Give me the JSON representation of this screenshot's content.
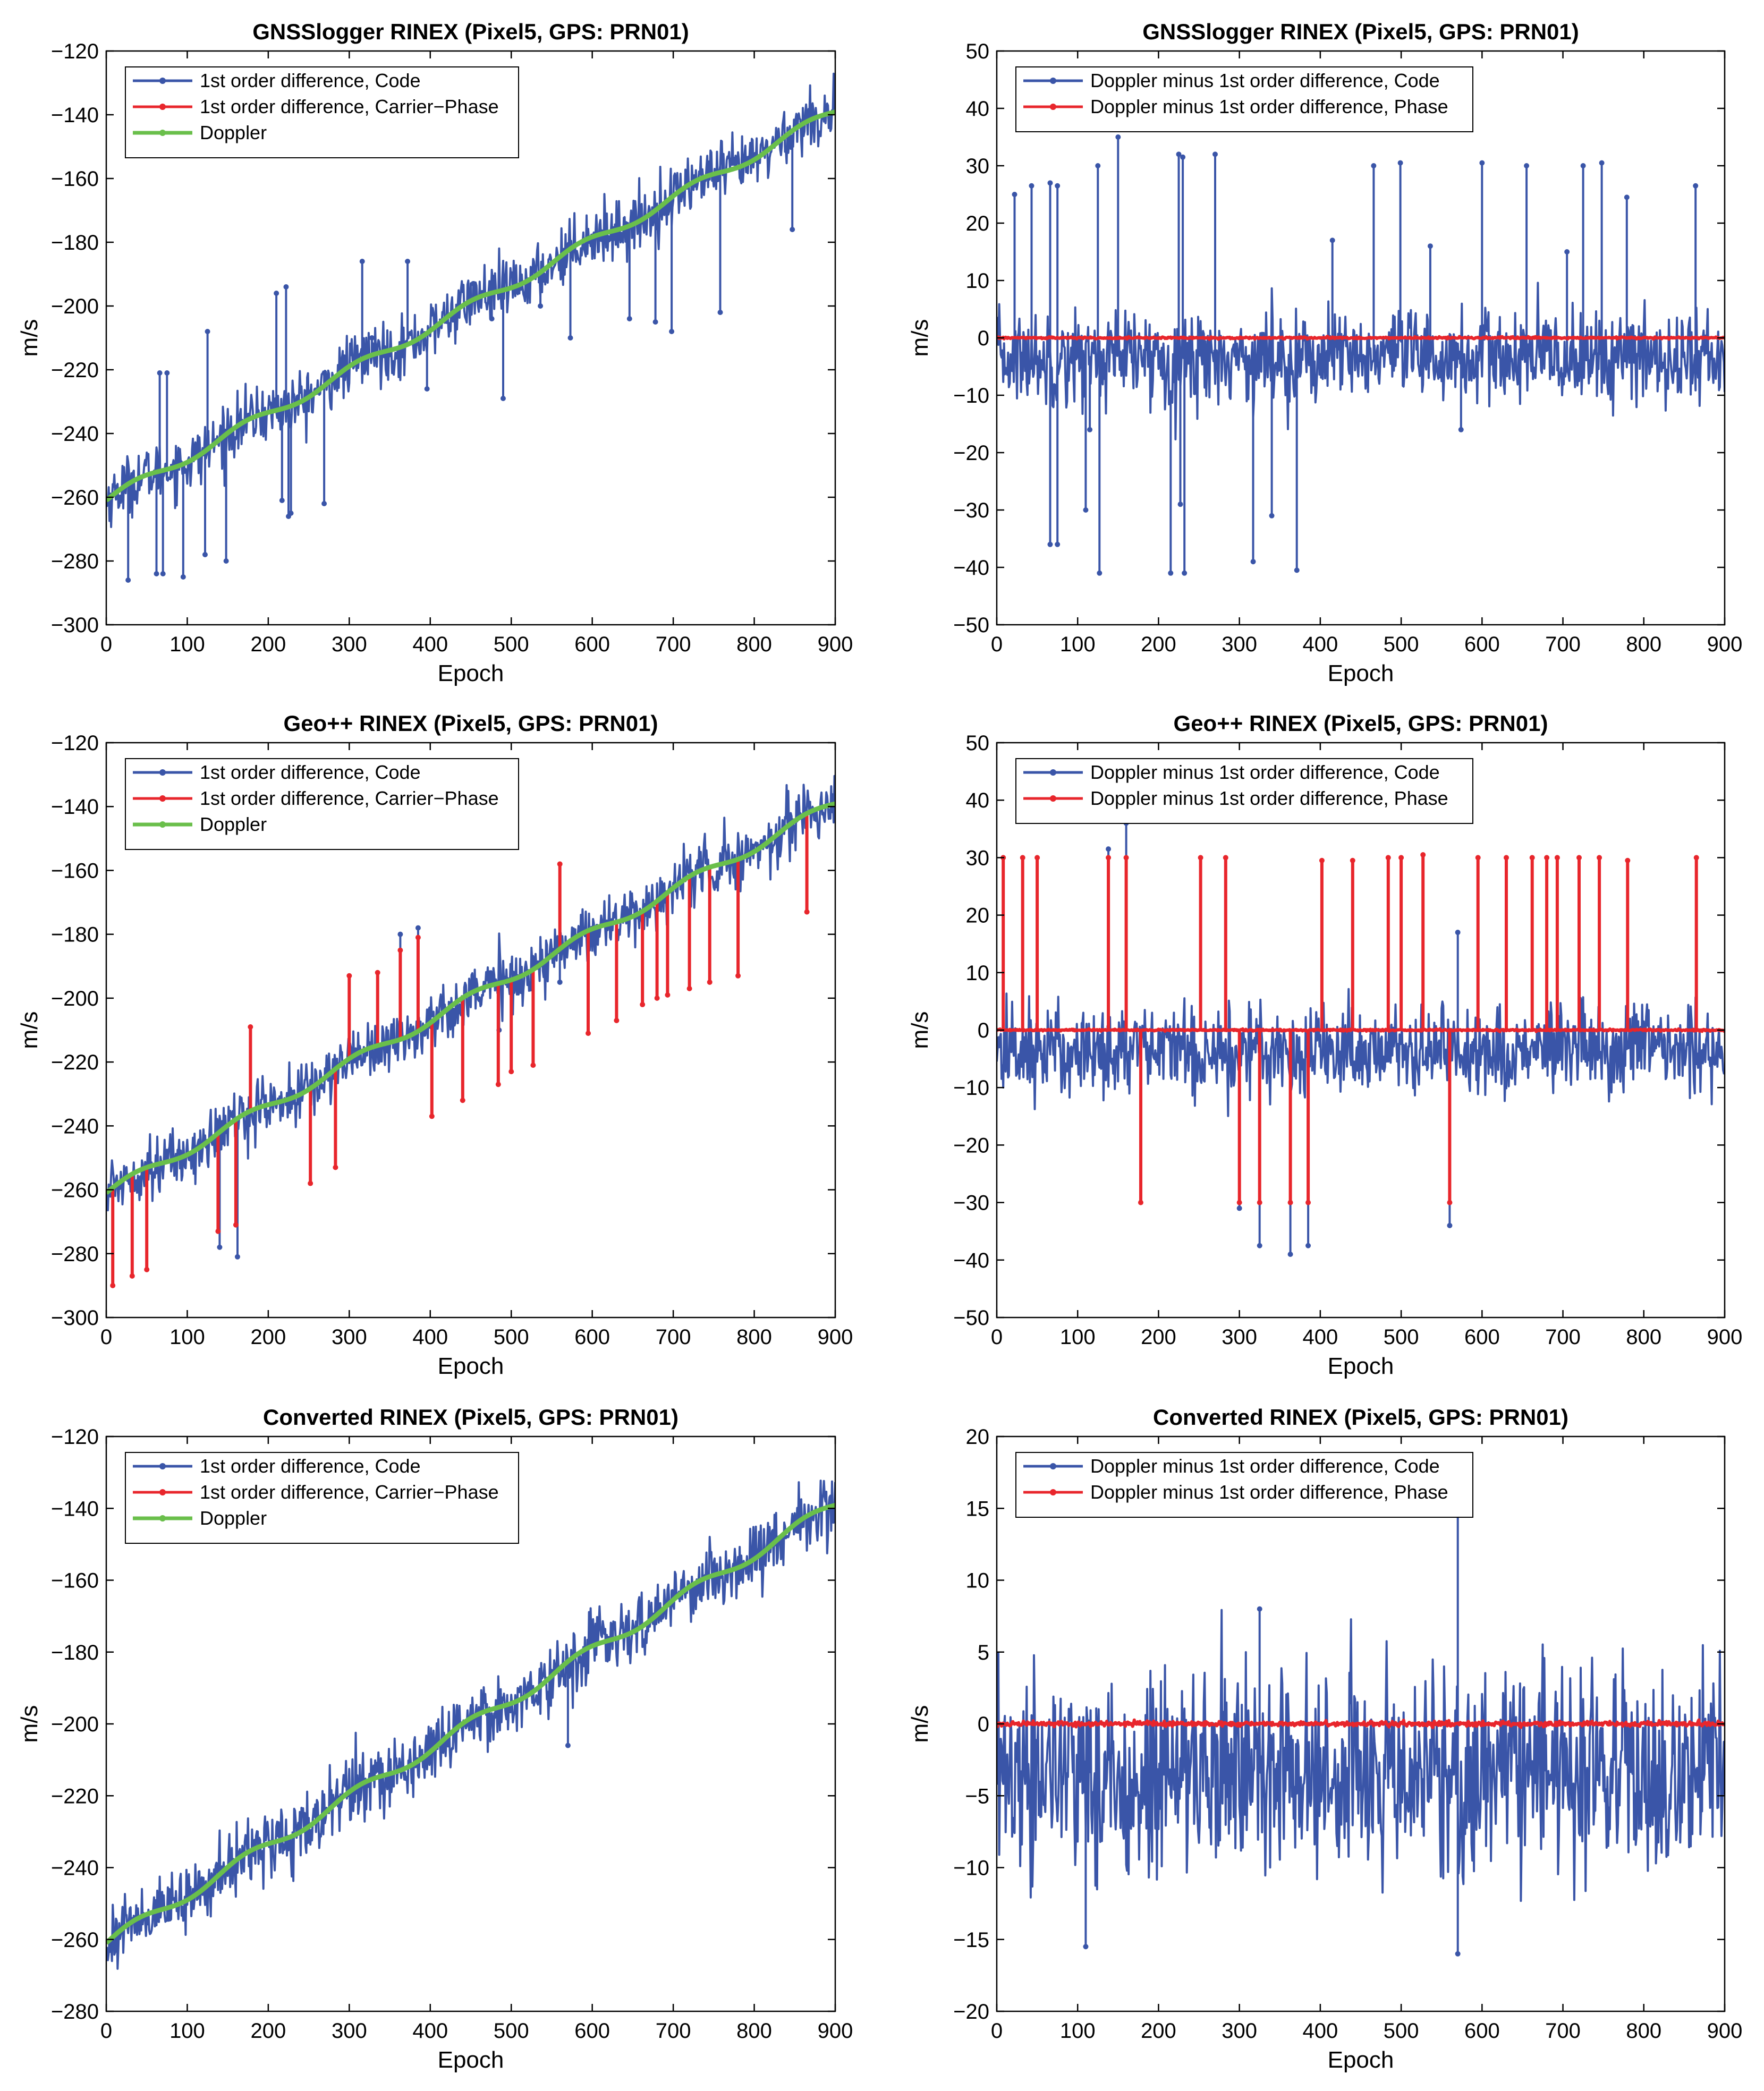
{
  "figure": {
    "panels": [
      "p1",
      "p2",
      "p3",
      "p4",
      "p5",
      "p6"
    ]
  },
  "chart_data": [
    {
      "id": "p1",
      "type": "line",
      "title": "GNSSlogger RINEX (Pixel5, GPS: PRN01)",
      "xlabel": "Epoch",
      "ylabel": "m/s",
      "xlim": [
        0,
        900
      ],
      "ylim": [
        -300,
        -120
      ],
      "xticks": [
        "0",
        "100",
        "200",
        "300",
        "400",
        "500",
        "600",
        "700",
        "800",
        "900"
      ],
      "yticks": [
        "−120",
        "−140",
        "−160",
        "−180",
        "−200",
        "−220",
        "−240",
        "−260",
        "−280",
        "−300"
      ],
      "legend_position": "top-left",
      "series": [
        {
          "name": "1st order difference, Code",
          "color": "#3a55a8",
          "kind": "noisy_trend",
          "start": -261,
          "end": -139,
          "noise": 4.5,
          "spikes": [
            [
              27,
              -286
            ],
            [
              62,
              -284
            ],
            [
              66,
              -221
            ],
            [
              70,
              -284
            ],
            [
              75,
              -221
            ],
            [
              95,
              -285
            ],
            [
              122,
              -278
            ],
            [
              125,
              -208
            ],
            [
              148,
              -280
            ],
            [
              210,
              -196
            ],
            [
              217,
              -261
            ],
            [
              222,
              -194
            ],
            [
              225,
              -266
            ],
            [
              228,
              -265
            ],
            [
              269,
              -262
            ],
            [
              316,
              -186
            ],
            [
              328,
              -210
            ],
            [
              372,
              -186
            ],
            [
              396,
              -226
            ],
            [
              453,
              -193
            ],
            [
              476,
              -204
            ],
            [
              490,
              -229
            ],
            [
              536,
              -200
            ],
            [
              573,
              -210
            ],
            [
              646,
              -204
            ],
            [
              678,
              -205
            ],
            [
              698,
              -208
            ],
            [
              758,
              -202
            ],
            [
              847,
              -176
            ]
          ]
        },
        {
          "name": "1st order difference, Carrier−Phase",
          "color": "#e8262c",
          "kind": "trend",
          "start": -261,
          "end": -139
        },
        {
          "name": "Doppler",
          "color": "#6abf4b",
          "kind": "trend",
          "start": -261,
          "end": -139
        }
      ]
    },
    {
      "id": "p2",
      "type": "line",
      "title": "GNSSlogger RINEX (Pixel5, GPS: PRN01)",
      "xlabel": "Epoch",
      "ylabel": "m/s",
      "xlim": [
        0,
        900
      ],
      "ylim": [
        -50,
        50
      ],
      "xticks": [
        "0",
        "100",
        "200",
        "300",
        "400",
        "500",
        "600",
        "700",
        "800",
        "900"
      ],
      "yticks": [
        "50",
        "40",
        "30",
        "20",
        "10",
        "0",
        "−10",
        "−20",
        "−30",
        "−40",
        "−50"
      ],
      "legend_position": "top-left",
      "series": [
        {
          "name": "Doppler minus 1st order difference, Code",
          "color": "#3a55a8",
          "kind": "noise",
          "mean": -3.5,
          "noise": 4,
          "spikes": [
            [
              22,
              25
            ],
            [
              43,
              26.5
            ],
            [
              66,
              27
            ],
            [
              66,
              -36
            ],
            [
              75,
              26.5
            ],
            [
              75,
              -36
            ],
            [
              110,
              -30
            ],
            [
              115,
              -16
            ],
            [
              125,
              30
            ],
            [
              127,
              -41
            ],
            [
              150,
              35
            ],
            [
              215,
              -41
            ],
            [
              225,
              32
            ],
            [
              227,
              -29
            ],
            [
              230,
              31.5
            ],
            [
              232,
              -41
            ],
            [
              270,
              32
            ],
            [
              317,
              -39
            ],
            [
              340,
              -31
            ],
            [
              371,
              -40.5
            ],
            [
              415,
              17
            ],
            [
              466,
              30
            ],
            [
              499,
              30.5
            ],
            [
              536,
              16
            ],
            [
              574,
              -16
            ],
            [
              600,
              30.5
            ],
            [
              655,
              30
            ],
            [
              705,
              15
            ],
            [
              725,
              30
            ],
            [
              748,
              30.5
            ],
            [
              779,
              24.5
            ],
            [
              864,
              26.5
            ]
          ]
        },
        {
          "name": "Doppler minus 1st order difference, Phase",
          "color": "#e8262c",
          "kind": "flat",
          "mean": 0
        }
      ]
    },
    {
      "id": "p3",
      "type": "line",
      "title": "Geo++ RINEX (Pixel5, GPS: PRN01)",
      "xlabel": "Epoch",
      "ylabel": "m/s",
      "xlim": [
        0,
        900
      ],
      "ylim": [
        -300,
        -120
      ],
      "xticks": [
        "0",
        "100",
        "200",
        "300",
        "400",
        "500",
        "600",
        "700",
        "800",
        "900"
      ],
      "yticks": [
        "−120",
        "−140",
        "−160",
        "−180",
        "−200",
        "−220",
        "−240",
        "−260",
        "−280",
        "−300"
      ],
      "legend_position": "top-left",
      "series": [
        {
          "name": "1st order difference, Code",
          "color": "#3a55a8",
          "kind": "noisy_trend",
          "start": -261,
          "end": -139,
          "noise": 4.5,
          "spikes": [
            [
              140,
              -278
            ],
            [
              162,
              -281
            ],
            [
              363,
              -180
            ],
            [
              385,
              -178
            ],
            [
              485,
              -210
            ],
            [
              560,
              -195
            ]
          ]
        },
        {
          "name": "1st order difference, Carrier−Phase",
          "color": "#e8262c",
          "kind": "trend_spikes",
          "start": -261,
          "end": -139,
          "spikes": [
            [
              8,
              -290
            ],
            [
              32,
              -287
            ],
            [
              50,
              -285
            ],
            [
              138,
              -273
            ],
            [
              160,
              -271
            ],
            [
              178,
              -209
            ],
            [
              252,
              -258
            ],
            [
              283,
              -253
            ],
            [
              300,
              -193
            ],
            [
              335,
              -192
            ],
            [
              363,
              -185
            ],
            [
              385,
              -181
            ],
            [
              402,
              -237
            ],
            [
              440,
              -232
            ],
            [
              484,
              -227
            ],
            [
              500,
              -223
            ],
            [
              527,
              -221
            ],
            [
              560,
              -158
            ],
            [
              595,
              -211
            ],
            [
              630,
              -207
            ],
            [
              662,
              -202
            ],
            [
              680,
              -200
            ],
            [
              693,
              -199
            ],
            [
              720,
              -197
            ],
            [
              745,
              -195
            ],
            [
              780,
              -193
            ],
            [
              865,
              -173
            ]
          ]
        },
        {
          "name": "Doppler",
          "color": "#6abf4b",
          "kind": "trend",
          "start": -261,
          "end": -139
        }
      ]
    },
    {
      "id": "p4",
      "type": "line",
      "title": "Geo++ RINEX (Pixel5, GPS: PRN01)",
      "xlabel": "Epoch",
      "ylabel": "m/s",
      "xlim": [
        0,
        900
      ],
      "ylim": [
        -50,
        50
      ],
      "xticks": [
        "0",
        "100",
        "200",
        "300",
        "400",
        "500",
        "600",
        "700",
        "800",
        "900"
      ],
      "yticks": [
        "50",
        "40",
        "30",
        "20",
        "10",
        "0",
        "−10",
        "−20",
        "−30",
        "−40",
        "−50"
      ],
      "legend_position": "top-left",
      "series": [
        {
          "name": "Doppler minus 1st order difference, Code",
          "color": "#3a55a8",
          "kind": "noise",
          "mean": -3.5,
          "noise": 4,
          "spikes": [
            [
              138,
              31.5
            ],
            [
              160,
              36
            ],
            [
              300,
              -31
            ],
            [
              325,
              -37.5
            ],
            [
              363,
              -39
            ],
            [
              385,
              -37.5
            ],
            [
              560,
              -34
            ],
            [
              570,
              17
            ]
          ]
        },
        {
          "name": "Doppler minus 1st order difference, Phase",
          "color": "#e8262c",
          "kind": "flat_spikes",
          "mean": 0,
          "spikes": [
            [
              8,
              30
            ],
            [
              32,
              30
            ],
            [
              50,
              30
            ],
            [
              138,
              30
            ],
            [
              160,
              30
            ],
            [
              178,
              -30
            ],
            [
              252,
              30
            ],
            [
              283,
              30
            ],
            [
              300,
              -30
            ],
            [
              325,
              -30
            ],
            [
              363,
              -30
            ],
            [
              385,
              -30
            ],
            [
              402,
              29.5
            ],
            [
              440,
              29.5
            ],
            [
              484,
              30
            ],
            [
              500,
              30
            ],
            [
              527,
              30.5
            ],
            [
              560,
              -30
            ],
            [
              595,
              30
            ],
            [
              630,
              30
            ],
            [
              662,
              30
            ],
            [
              680,
              30
            ],
            [
              693,
              30
            ],
            [
              720,
              30
            ],
            [
              745,
              30
            ],
            [
              780,
              29.5
            ],
            [
              865,
              30
            ]
          ]
        }
      ]
    },
    {
      "id": "p5",
      "type": "line",
      "title": "Converted RINEX (Pixel5, GPS: PRN01)",
      "xlabel": "Epoch",
      "ylabel": "m/s",
      "xlim": [
        0,
        900
      ],
      "ylim": [
        -280,
        -120
      ],
      "xticks": [
        "0",
        "100",
        "200",
        "300",
        "400",
        "500",
        "600",
        "700",
        "800",
        "900"
      ],
      "yticks": [
        "−120",
        "−140",
        "−160",
        "−180",
        "−200",
        "−220",
        "−240",
        "−260",
        "−280"
      ],
      "legend_position": "top-left",
      "series": [
        {
          "name": "1st order difference, Code",
          "color": "#3a55a8",
          "kind": "noisy_trend",
          "start": -261,
          "end": -139,
          "noise": 4.5,
          "spikes": [
            [
              570,
              -206
            ]
          ]
        },
        {
          "name": "1st order difference, Carrier−Phase",
          "color": "#e8262c",
          "kind": "trend",
          "start": -261,
          "end": -139
        },
        {
          "name": "Doppler",
          "color": "#6abf4b",
          "kind": "trend",
          "start": -261,
          "end": -139
        }
      ]
    },
    {
      "id": "p6",
      "type": "line",
      "title": "Converted RINEX (Pixel5, GPS: PRN01)",
      "xlabel": "Epoch",
      "ylabel": "m/s",
      "xlim": [
        0,
        900
      ],
      "ylim": [
        -20,
        20
      ],
      "xticks": [
        "0",
        "100",
        "200",
        "300",
        "400",
        "500",
        "600",
        "700",
        "800",
        "900"
      ],
      "yticks": [
        "20",
        "15",
        "10",
        "5",
        "0",
        "−5",
        "−10",
        "−15",
        "−20"
      ],
      "legend_position": "top-left",
      "series": [
        {
          "name": "Doppler minus 1st order difference, Code",
          "color": "#3a55a8",
          "kind": "noise",
          "mean": -3.5,
          "noise": 3.6,
          "spikes": [
            [
              110,
              -15.5
            ],
            [
              325,
              8
            ],
            [
              570,
              15
            ],
            [
              570,
              -16
            ]
          ]
        },
        {
          "name": "Doppler minus 1st order difference, Phase",
          "color": "#e8262c",
          "kind": "flat",
          "mean": 0
        }
      ]
    }
  ]
}
